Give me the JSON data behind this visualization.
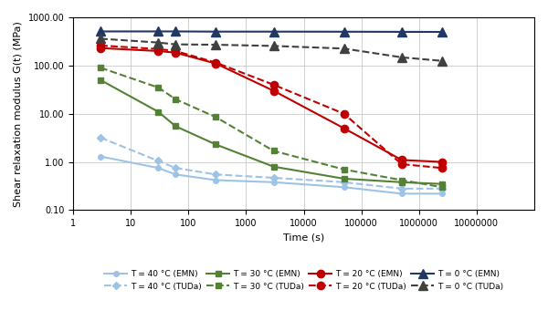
{
  "title": "",
  "xlabel": "Time (s)",
  "ylabel": "Shear relaxation modulus G(t) (MPa)",
  "xlim": [
    1,
    100000000.0
  ],
  "ylim": [
    0.1,
    1000
  ],
  "xticks": [
    1,
    10,
    100,
    1000,
    10000,
    100000,
    1000000,
    10000000
  ],
  "xtick_labels": [
    "1",
    "10",
    "100",
    "1000",
    "10000",
    "100000",
    "1000000",
    "10000000"
  ],
  "yticks": [
    0.1,
    1.0,
    10.0,
    100.0,
    1000.0
  ],
  "ytick_labels": [
    "0.10",
    "1.00",
    "10.00",
    "100.00",
    "1000.00"
  ],
  "series": [
    {
      "label": "T = 40 °C (EMN)",
      "color": "#9dc3e6",
      "style": "solid",
      "marker": "o",
      "marker_size": 4,
      "x": [
        3,
        30,
        60,
        300,
        3000,
        50000,
        500000,
        2500000
      ],
      "y": [
        1.3,
        0.75,
        0.55,
        0.42,
        0.38,
        0.3,
        0.22,
        0.22
      ]
    },
    {
      "label": "T = 40 °C (TUDa)",
      "color": "#9dc3e6",
      "style": "dashed",
      "marker": "D",
      "marker_size": 4,
      "x": [
        3,
        30,
        60,
        300,
        3000,
        50000,
        500000,
        2500000
      ],
      "y": [
        3.2,
        1.05,
        0.75,
        0.55,
        0.47,
        0.38,
        0.28,
        0.28
      ]
    },
    {
      "label": "T = 30 °C (EMN)",
      "color": "#548235",
      "style": "solid",
      "marker": "s",
      "marker_size": 5,
      "x": [
        3,
        30,
        60,
        300,
        3000,
        50000,
        500000,
        2500000
      ],
      "y": [
        50.0,
        11.0,
        5.5,
        2.3,
        0.8,
        0.45,
        0.38,
        0.35
      ]
    },
    {
      "label": "T = 30 °C (TUDa)",
      "color": "#548235",
      "style": "dashed",
      "marker": "s",
      "marker_size": 5,
      "x": [
        3,
        30,
        60,
        300,
        3000,
        50000,
        500000,
        2500000
      ],
      "y": [
        90.0,
        35.0,
        20.0,
        8.5,
        1.7,
        0.7,
        0.42,
        0.3
      ]
    },
    {
      "label": "T = 20 °C (EMN)",
      "color": "#c00000",
      "style": "solid",
      "marker": "o",
      "marker_size": 6,
      "x": [
        3,
        30,
        60,
        300,
        3000,
        50000,
        500000,
        2500000
      ],
      "y": [
        230.0,
        200.0,
        185.0,
        110.0,
        30.0,
        5.0,
        1.1,
        1.0
      ]
    },
    {
      "label": "T = 20 °C (TUDa)",
      "color": "#c00000",
      "style": "dashed",
      "marker": "o",
      "marker_size": 6,
      "x": [
        3,
        30,
        60,
        300,
        3000,
        50000,
        500000,
        2500000
      ],
      "y": [
        260.0,
        220.0,
        200.0,
        115.0,
        40.0,
        10.0,
        0.9,
        0.75
      ]
    },
    {
      "label": "T = 0 °C (EMN)",
      "color": "#1f3864",
      "style": "solid",
      "marker": "^",
      "marker_size": 7,
      "x": [
        3,
        30,
        60,
        300,
        3000,
        50000,
        500000,
        2500000
      ],
      "y": [
        510.0,
        510.0,
        510.0,
        505.0,
        505.0,
        503.0,
        500.0,
        498.0
      ]
    },
    {
      "label": "T = 0 °C (TUDa)",
      "color": "#404040",
      "style": "dashed",
      "marker": "^",
      "marker_size": 7,
      "x": [
        3,
        30,
        60,
        300,
        3000,
        50000,
        500000,
        2500000
      ],
      "y": [
        360.0,
        300.0,
        275.0,
        270.0,
        255.0,
        225.0,
        148.0,
        125.0
      ]
    }
  ],
  "legend_order": [
    0,
    1,
    2,
    3,
    4,
    5,
    6,
    7
  ]
}
